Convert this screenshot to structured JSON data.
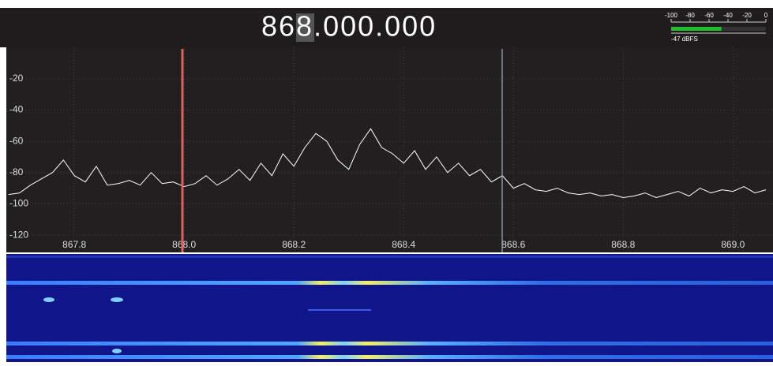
{
  "header": {
    "frequency": "868.000.000"
  },
  "level_meter": {
    "ticks": [
      -100,
      -80,
      -60,
      -40,
      -20,
      0
    ],
    "value": -47,
    "value_label": "-47 dBFS"
  },
  "chart_data": {
    "type": "line",
    "color": "#ffffff",
    "grid": true,
    "x": [
      867.68,
      867.7,
      867.72,
      867.74,
      867.76,
      867.78,
      867.8,
      867.82,
      867.84,
      867.86,
      867.88,
      867.9,
      867.92,
      867.94,
      867.96,
      867.98,
      868.0,
      868.02,
      868.04,
      868.06,
      868.08,
      868.1,
      868.12,
      868.14,
      868.16,
      868.18,
      868.2,
      868.22,
      868.24,
      868.26,
      868.28,
      868.3,
      868.32,
      868.34,
      868.36,
      868.38,
      868.4,
      868.42,
      868.44,
      868.46,
      868.48,
      868.5,
      868.52,
      868.54,
      868.56,
      868.58,
      868.6,
      868.62,
      868.64,
      868.66,
      868.68,
      868.7,
      868.72,
      868.74,
      868.76,
      868.78,
      868.8,
      868.82,
      868.84,
      868.86,
      868.88,
      868.9,
      868.92,
      868.94,
      868.96,
      868.98,
      869.0,
      869.02,
      869.04,
      869.06
    ],
    "values": [
      -94,
      -93,
      -88,
      -84,
      -80,
      -72,
      -82,
      -86,
      -76,
      -88,
      -87,
      -85,
      -88,
      -80,
      -87,
      -86,
      -89,
      -87,
      -82,
      -88,
      -84,
      -78,
      -85,
      -74,
      -82,
      -68,
      -76,
      -64,
      -55,
      -60,
      -72,
      -78,
      -62,
      -52,
      -64,
      -68,
      -74,
      -66,
      -78,
      -70,
      -80,
      -74,
      -82,
      -78,
      -86,
      -82,
      -90,
      -87,
      -91,
      -92,
      -90,
      -93,
      -94,
      -93,
      -95,
      -94,
      -96,
      -95,
      -93,
      -96,
      -94,
      -92,
      -95,
      -90,
      -93,
      -91,
      -92,
      -89,
      -93,
      -91
    ],
    "xlim": [
      867.676,
      869.073
    ],
    "ylim": [
      -131,
      0
    ],
    "xticks": [
      867.8,
      {
        "value": 868,
        "label": "868.0"
      },
      868.2,
      868.4,
      868.6,
      868.8,
      {
        "value": 869,
        "label": "869.0"
      }
    ],
    "yticks": [
      -20,
      -40,
      -60,
      -80,
      -100,
      -120
    ]
  }
}
